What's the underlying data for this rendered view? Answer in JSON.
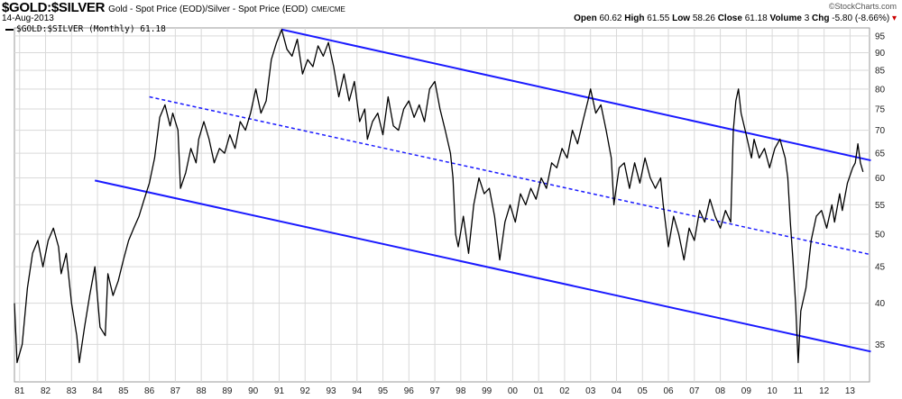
{
  "header": {
    "symbol": "$GOLD:$SILVER",
    "description": "Gold - Spot Price (EOD)/Silver - Spot Price (EOD)",
    "exchange": "CME/CME",
    "date": "14-Aug-2013",
    "brand": "©StockCharts.com",
    "open_label": "Open",
    "open": "60.62",
    "high_label": "High",
    "high": "61.55",
    "low_label": "Low",
    "low": "58.26",
    "close_label": "Close",
    "close": "61.18",
    "volume_label": "Volume",
    "volume": "3",
    "chg_label": "Chg",
    "chg": "-5.80 (-8.66%)"
  },
  "legend": {
    "label": "$GOLD:$SILVER (Monthly) 61.18"
  },
  "colors": {
    "price": "#000000",
    "trend": "#1a1aff",
    "grid": "#d9d9d9"
  },
  "chart_data": {
    "type": "line",
    "xlim": [
      1981.0,
      2013.95
    ],
    "ylim": [
      31,
      97.5
    ],
    "y_scale": "log",
    "grid": true,
    "x_ticks": [
      "81",
      "82",
      "83",
      "84",
      "85",
      "86",
      "87",
      "88",
      "89",
      "90",
      "91",
      "92",
      "93",
      "94",
      "95",
      "96",
      "97",
      "98",
      "99",
      "00",
      "01",
      "02",
      "03",
      "04",
      "05",
      "06",
      "07",
      "08",
      "09",
      "10",
      "11",
      "12",
      "13"
    ],
    "y_ticks": [
      35,
      40,
      45,
      50,
      55,
      60,
      65,
      70,
      75,
      80,
      85,
      90,
      95
    ],
    "series": [
      {
        "values": [
          [
            1981.0,
            40
          ],
          [
            1981.1,
            33
          ],
          [
            1981.3,
            35
          ],
          [
            1981.5,
            42
          ],
          [
            1981.7,
            47
          ],
          [
            1981.9,
            49
          ],
          [
            1982.1,
            45
          ],
          [
            1982.3,
            49
          ],
          [
            1982.5,
            51
          ],
          [
            1982.7,
            48
          ],
          [
            1982.8,
            44
          ],
          [
            1983.0,
            47
          ],
          [
            1983.2,
            40
          ],
          [
            1983.4,
            36
          ],
          [
            1983.5,
            33
          ],
          [
            1983.7,
            37
          ],
          [
            1983.9,
            41
          ],
          [
            1984.1,
            45
          ],
          [
            1984.3,
            37
          ],
          [
            1984.5,
            36
          ],
          [
            1984.6,
            44
          ],
          [
            1984.8,
            41
          ],
          [
            1985.0,
            43
          ],
          [
            1985.2,
            46
          ],
          [
            1985.4,
            49
          ],
          [
            1985.6,
            51
          ],
          [
            1985.8,
            53
          ],
          [
            1986.0,
            56
          ],
          [
            1986.2,
            59
          ],
          [
            1986.4,
            64
          ],
          [
            1986.6,
            73
          ],
          [
            1986.8,
            76
          ],
          [
            1987.0,
            71
          ],
          [
            1987.1,
            74
          ],
          [
            1987.3,
            70
          ],
          [
            1987.4,
            58
          ],
          [
            1987.6,
            61
          ],
          [
            1987.8,
            66
          ],
          [
            1988.0,
            63
          ],
          [
            1988.1,
            68
          ],
          [
            1988.3,
            72
          ],
          [
            1988.5,
            68
          ],
          [
            1988.7,
            63
          ],
          [
            1988.9,
            66
          ],
          [
            1989.1,
            65
          ],
          [
            1989.3,
            69
          ],
          [
            1989.5,
            66
          ],
          [
            1989.7,
            72
          ],
          [
            1989.9,
            70
          ],
          [
            1990.1,
            74
          ],
          [
            1990.3,
            80
          ],
          [
            1990.5,
            74
          ],
          [
            1990.7,
            77
          ],
          [
            1990.9,
            88
          ],
          [
            1991.1,
            93
          ],
          [
            1991.3,
            97
          ],
          [
            1991.5,
            91
          ],
          [
            1991.7,
            89
          ],
          [
            1991.9,
            94
          ],
          [
            1992.1,
            84
          ],
          [
            1992.3,
            88
          ],
          [
            1992.5,
            86
          ],
          [
            1992.7,
            92
          ],
          [
            1992.9,
            89
          ],
          [
            1993.1,
            93
          ],
          [
            1993.3,
            86
          ],
          [
            1993.5,
            78
          ],
          [
            1993.7,
            84
          ],
          [
            1993.9,
            77
          ],
          [
            1994.1,
            82
          ],
          [
            1994.3,
            72
          ],
          [
            1994.5,
            75
          ],
          [
            1994.6,
            68
          ],
          [
            1994.8,
            72
          ],
          [
            1995.0,
            74
          ],
          [
            1995.2,
            69
          ],
          [
            1995.4,
            78
          ],
          [
            1995.6,
            71
          ],
          [
            1995.8,
            70
          ],
          [
            1996.0,
            75
          ],
          [
            1996.2,
            77
          ],
          [
            1996.4,
            73
          ],
          [
            1996.6,
            76
          ],
          [
            1996.8,
            72
          ],
          [
            1997.0,
            80
          ],
          [
            1997.2,
            82
          ],
          [
            1997.4,
            75
          ],
          [
            1997.6,
            70
          ],
          [
            1997.8,
            65
          ],
          [
            1997.9,
            60
          ],
          [
            1998.0,
            50
          ],
          [
            1998.1,
            48
          ],
          [
            1998.3,
            53
          ],
          [
            1998.5,
            47
          ],
          [
            1998.7,
            55
          ],
          [
            1998.9,
            60
          ],
          [
            1999.1,
            57
          ],
          [
            1999.3,
            58
          ],
          [
            1999.5,
            53
          ],
          [
            1999.7,
            46
          ],
          [
            1999.9,
            52
          ],
          [
            2000.1,
            55
          ],
          [
            2000.3,
            52
          ],
          [
            2000.5,
            57
          ],
          [
            2000.7,
            55
          ],
          [
            2000.9,
            58
          ],
          [
            2001.1,
            56
          ],
          [
            2001.3,
            60
          ],
          [
            2001.5,
            58
          ],
          [
            2001.7,
            63
          ],
          [
            2001.9,
            62
          ],
          [
            2002.1,
            66
          ],
          [
            2002.3,
            64
          ],
          [
            2002.5,
            70
          ],
          [
            2002.7,
            67
          ],
          [
            2002.9,
            72
          ],
          [
            2003.1,
            77
          ],
          [
            2003.2,
            80
          ],
          [
            2003.4,
            74
          ],
          [
            2003.6,
            76
          ],
          [
            2003.8,
            70
          ],
          [
            2004.0,
            64
          ],
          [
            2004.1,
            55
          ],
          [
            2004.3,
            62
          ],
          [
            2004.5,
            63
          ],
          [
            2004.7,
            58
          ],
          [
            2004.9,
            63
          ],
          [
            2005.1,
            59
          ],
          [
            2005.3,
            64
          ],
          [
            2005.5,
            60
          ],
          [
            2005.7,
            58
          ],
          [
            2005.9,
            60
          ],
          [
            2006.0,
            55
          ],
          [
            2006.2,
            48
          ],
          [
            2006.4,
            53
          ],
          [
            2006.6,
            50
          ],
          [
            2006.8,
            46
          ],
          [
            2007.0,
            51
          ],
          [
            2007.2,
            49
          ],
          [
            2007.4,
            54
          ],
          [
            2007.6,
            52
          ],
          [
            2007.8,
            56
          ],
          [
            2008.0,
            53
          ],
          [
            2008.2,
            51
          ],
          [
            2008.4,
            54
          ],
          [
            2008.6,
            52
          ],
          [
            2008.7,
            70
          ],
          [
            2008.8,
            77
          ],
          [
            2008.9,
            80
          ],
          [
            2009.0,
            74
          ],
          [
            2009.2,
            69
          ],
          [
            2009.4,
            64
          ],
          [
            2009.5,
            68
          ],
          [
            2009.7,
            64
          ],
          [
            2009.9,
            66
          ],
          [
            2010.1,
            62
          ],
          [
            2010.3,
            66
          ],
          [
            2010.5,
            68
          ],
          [
            2010.7,
            64
          ],
          [
            2010.8,
            60
          ],
          [
            2010.9,
            52
          ],
          [
            2011.0,
            46
          ],
          [
            2011.1,
            40
          ],
          [
            2011.2,
            33
          ],
          [
            2011.3,
            39
          ],
          [
            2011.5,
            42
          ],
          [
            2011.7,
            49
          ],
          [
            2011.9,
            53
          ],
          [
            2012.1,
            54
          ],
          [
            2012.3,
            51
          ],
          [
            2012.5,
            55
          ],
          [
            2012.6,
            52
          ],
          [
            2012.8,
            57
          ],
          [
            2012.9,
            54
          ],
          [
            2013.1,
            59
          ],
          [
            2013.3,
            62
          ],
          [
            2013.4,
            63
          ],
          [
            2013.5,
            67
          ],
          [
            2013.6,
            63
          ],
          [
            2013.7,
            61.18
          ]
        ]
      }
    ],
    "trendlines": [
      {
        "style": "solid",
        "points": [
          [
            1991.3,
            97
          ],
          [
            2014.0,
            63.5
          ]
        ]
      },
      {
        "style": "dashed",
        "points": [
          [
            1986.2,
            78
          ],
          [
            2014.0,
            46.8
          ]
        ]
      },
      {
        "style": "solid",
        "points": [
          [
            1984.1,
            59.5
          ],
          [
            2014.0,
            34.2
          ]
        ]
      }
    ]
  }
}
